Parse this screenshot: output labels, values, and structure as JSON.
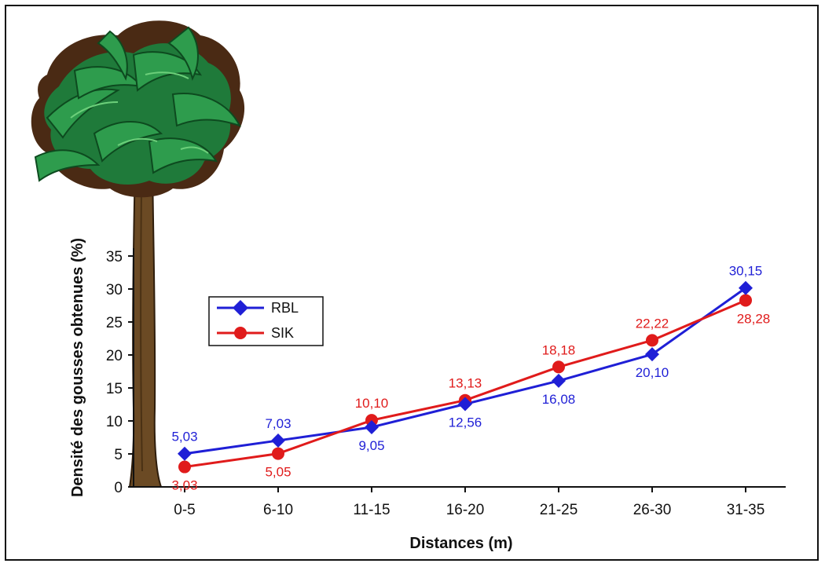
{
  "chart_data": {
    "type": "line",
    "title": "",
    "xlabel": "Distances (m)",
    "ylabel": "Densité des gousses obtenues (%)",
    "categories": [
      "0-5",
      "6-10",
      "11-15",
      "16-20",
      "21-25",
      "26-30",
      "31-35"
    ],
    "ylim": [
      0,
      35
    ],
    "yticks": [
      0,
      5,
      10,
      15,
      20,
      25,
      30,
      35
    ],
    "grid": false,
    "legend_position": "left",
    "series": [
      {
        "name": "RBL",
        "color": "#1f1fd6",
        "marker": "diamond",
        "values": [
          5.03,
          7.03,
          9.05,
          12.56,
          16.08,
          20.1,
          30.15
        ],
        "labels": [
          "5,03",
          "7,03",
          "9,05",
          "12,56",
          "16,08",
          "20,10",
          "30,15"
        ]
      },
      {
        "name": "SIK",
        "color": "#e01b1b",
        "marker": "circle",
        "values": [
          3.03,
          5.05,
          10.1,
          13.13,
          18.18,
          22.22,
          28.28
        ],
        "labels": [
          "3,03",
          "5,05",
          "10,10",
          "13,13",
          "18,18",
          "22,22",
          "28,28"
        ]
      }
    ]
  },
  "decoration": {
    "illustration": "tree-illustration"
  }
}
